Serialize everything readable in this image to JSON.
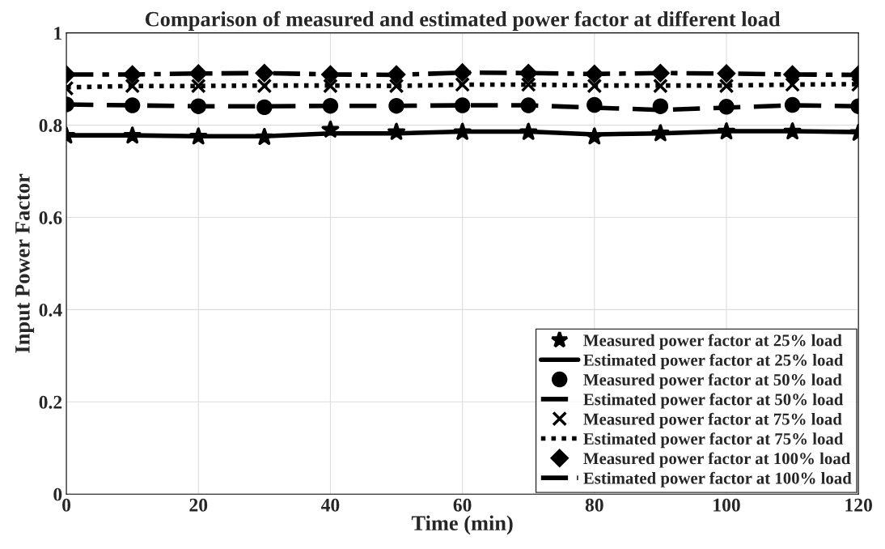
{
  "chart_data": {
    "type": "line",
    "title": "Comparison of measured and estimated power factor at different load",
    "xlabel": "Time (min)",
    "ylabel": "Input Power Factor",
    "x": [
      0,
      10,
      20,
      30,
      40,
      50,
      60,
      70,
      80,
      90,
      100,
      110,
      120
    ],
    "series": [
      {
        "name": "Measured power factor at 25% load",
        "color": "#000000",
        "type": "scatter",
        "marker": "star",
        "values": [
          0.777,
          0.777,
          0.775,
          0.774,
          0.79,
          0.785,
          0.785,
          0.785,
          0.775,
          0.782,
          0.786,
          0.786,
          0.783
        ]
      },
      {
        "name": "Estimated power factor at 25% load",
        "color": "#000000",
        "marker": "none",
        "line_style": "solid",
        "values": [
          0.778,
          0.778,
          0.776,
          0.776,
          0.782,
          0.782,
          0.786,
          0.786,
          0.78,
          0.782,
          0.787,
          0.787,
          0.785
        ]
      },
      {
        "name": "Measured power factor at 50% load",
        "color": "#000000",
        "type": "scatter",
        "marker": "circle",
        "values": [
          0.845,
          0.843,
          0.841,
          0.839,
          0.842,
          0.842,
          0.843,
          0.843,
          0.844,
          0.841,
          0.84,
          0.844,
          0.841
        ]
      },
      {
        "name": "Estimated power factor at 50% load",
        "color": "#000000",
        "marker": "none",
        "line_style": "dashed",
        "values": [
          0.845,
          0.843,
          0.841,
          0.841,
          0.842,
          0.842,
          0.843,
          0.843,
          0.838,
          0.833,
          0.838,
          0.843,
          0.841
        ]
      },
      {
        "name": "Measured power factor at 75% load",
        "color": "#000000",
        "type": "scatter",
        "marker": "cross",
        "values": [
          0.88,
          0.885,
          0.885,
          0.885,
          0.885,
          0.885,
          0.888,
          0.888,
          0.885,
          0.885,
          0.885,
          0.888,
          0.888
        ]
      },
      {
        "name": "Estimated power factor at 75% load",
        "color": "#000000",
        "marker": "none",
        "line_style": "dotted",
        "values": [
          0.882,
          0.885,
          0.885,
          0.886,
          0.886,
          0.885,
          0.888,
          0.888,
          0.886,
          0.886,
          0.886,
          0.888,
          0.889
        ]
      },
      {
        "name": "Measured power factor at 100% load",
        "color": "#000000",
        "type": "scatter",
        "marker": "diamond",
        "values": [
          0.91,
          0.91,
          0.912,
          0.913,
          0.91,
          0.91,
          0.914,
          0.913,
          0.911,
          0.913,
          0.912,
          0.91,
          0.91
        ]
      },
      {
        "name": "Estimated power factor at 100% load",
        "color": "#000000",
        "marker": "none",
        "line_style": "dashdot",
        "values": [
          0.91,
          0.91,
          0.912,
          0.913,
          0.91,
          0.909,
          0.914,
          0.913,
          0.911,
          0.913,
          0.912,
          0.91,
          0.909
        ]
      }
    ],
    "xlim": [
      0,
      120
    ],
    "xticks": [
      0,
      20,
      40,
      60,
      80,
      100,
      120
    ],
    "ylim": [
      0,
      1
    ],
    "yticks": [
      0,
      0.2,
      0.4,
      0.6,
      0.8,
      1
    ],
    "grid": true,
    "legend": "bottom right"
  }
}
